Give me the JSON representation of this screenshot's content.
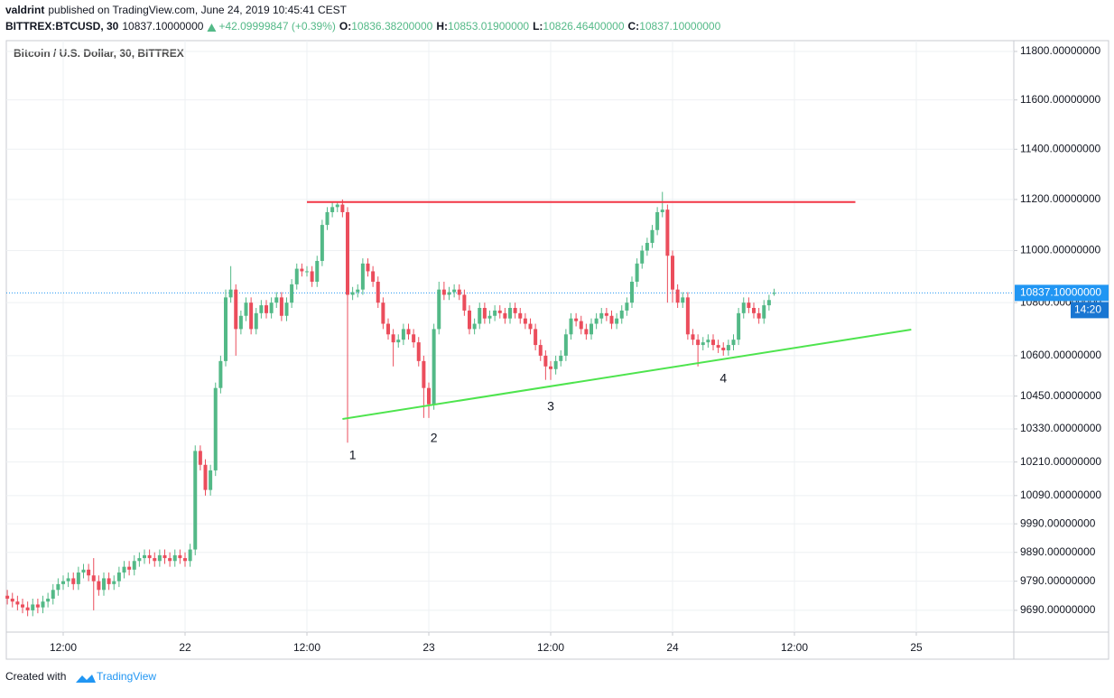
{
  "header": {
    "author": "valdrint",
    "published": "published on TradingView.com, June 24, 2019 10:45:41 CEST",
    "symbol": "BITTREX:BTCUSD, 30",
    "last": "10837.10000000",
    "change": "+42.09999847 (+0.39%)",
    "ohlc": [
      {
        "label": "O:",
        "value": "10836.38200000"
      },
      {
        "label": "H:",
        "value": "10853.01900000"
      },
      {
        "label": "L:",
        "value": "10826.46400000"
      },
      {
        "label": "C:",
        "value": "10837.10000000"
      }
    ]
  },
  "footer": {
    "created": "Created with",
    "brand": "TradingView"
  },
  "chart_data": {
    "type": "candlestick",
    "title": "Bitcoin / U.S. Dollar, 30, BITTREX",
    "up_color": "#53b987",
    "down_color": "#eb4d5c",
    "log": true,
    "grid": true,
    "xlim": [
      "2019-06-21 06:24",
      "2019-06-25 09:36"
    ],
    "xticks": [
      {
        "value": "2019-06-21 12:00",
        "label": "12:00"
      },
      {
        "value": "2019-06-22 00:00",
        "label": "22"
      },
      {
        "value": "2019-06-22 12:00",
        "label": "12:00"
      },
      {
        "value": "2019-06-23 00:00",
        "label": "23"
      },
      {
        "value": "2019-06-23 12:00",
        "label": "12:00"
      },
      {
        "value": "2019-06-24 00:00",
        "label": "24"
      },
      {
        "value": "2019-06-24 12:00",
        "label": "12:00"
      },
      {
        "value": "2019-06-25 00:00",
        "label": "25"
      }
    ],
    "ylim": [
      9616,
      11845
    ],
    "yticks": [
      {
        "value": 11800,
        "label": "11800.00000000"
      },
      {
        "value": 11600,
        "label": "11600.00000000"
      },
      {
        "value": 11400,
        "label": "11400.00000000"
      },
      {
        "value": 11200,
        "label": "11200.00000000"
      },
      {
        "value": 11000,
        "label": "11000.00000000"
      },
      {
        "value": 10800,
        "label": "10800.00000000"
      },
      {
        "value": 10600,
        "label": "10600.00000000"
      },
      {
        "value": 10450,
        "label": "10450.00000000"
      },
      {
        "value": 10330,
        "label": "10330.00000000"
      },
      {
        "value": 10210,
        "label": "10210.00000000"
      },
      {
        "value": 10090,
        "label": "10090.00000000"
      },
      {
        "value": 9990,
        "label": "9990.00000000"
      },
      {
        "value": 9890,
        "label": "9890.00000000"
      },
      {
        "value": 9790,
        "label": "9790.00000000"
      },
      {
        "value": 9690,
        "label": "9690.00000000"
      }
    ],
    "x": [
      "2019-06-21 06:30",
      "2019-06-21 07:00",
      "2019-06-21 07:30",
      "2019-06-21 08:00",
      "2019-06-21 08:30",
      "2019-06-21 09:00",
      "2019-06-21 09:30",
      "2019-06-21 10:00",
      "2019-06-21 10:30",
      "2019-06-21 11:00",
      "2019-06-21 11:30",
      "2019-06-21 12:00",
      "2019-06-21 12:30",
      "2019-06-21 13:00",
      "2019-06-21 13:30",
      "2019-06-21 14:00",
      "2019-06-21 14:30",
      "2019-06-21 15:00",
      "2019-06-21 15:30",
      "2019-06-21 16:00",
      "2019-06-21 16:30",
      "2019-06-21 17:00",
      "2019-06-21 17:30",
      "2019-06-21 18:00",
      "2019-06-21 18:30",
      "2019-06-21 19:00",
      "2019-06-21 19:30",
      "2019-06-21 20:00",
      "2019-06-21 20:30",
      "2019-06-21 21:00",
      "2019-06-21 21:30",
      "2019-06-21 22:00",
      "2019-06-21 22:30",
      "2019-06-21 23:00",
      "2019-06-21 23:30",
      "2019-06-22 00:00",
      "2019-06-22 00:30",
      "2019-06-22 01:00",
      "2019-06-22 01:30",
      "2019-06-22 02:00",
      "2019-06-22 02:30",
      "2019-06-22 03:00",
      "2019-06-22 03:30",
      "2019-06-22 04:00",
      "2019-06-22 04:30",
      "2019-06-22 05:00",
      "2019-06-22 05:30",
      "2019-06-22 06:00",
      "2019-06-22 06:30",
      "2019-06-22 07:00",
      "2019-06-22 07:30",
      "2019-06-22 08:00",
      "2019-06-22 08:30",
      "2019-06-22 09:00",
      "2019-06-22 09:30",
      "2019-06-22 10:00",
      "2019-06-22 10:30",
      "2019-06-22 11:00",
      "2019-06-22 11:30",
      "2019-06-22 12:00",
      "2019-06-22 12:30",
      "2019-06-22 13:00",
      "2019-06-22 13:30",
      "2019-06-22 14:00",
      "2019-06-22 14:30",
      "2019-06-22 15:00",
      "2019-06-22 15:30",
      "2019-06-22 16:00",
      "2019-06-22 16:30",
      "2019-06-22 17:00",
      "2019-06-22 17:30",
      "2019-06-22 18:00",
      "2019-06-22 18:30",
      "2019-06-22 19:00",
      "2019-06-22 19:30",
      "2019-06-22 20:00",
      "2019-06-22 20:30",
      "2019-06-22 21:00",
      "2019-06-22 21:30",
      "2019-06-22 22:00",
      "2019-06-22 22:30",
      "2019-06-22 23:00",
      "2019-06-22 23:30",
      "2019-06-23 00:00",
      "2019-06-23 00:30",
      "2019-06-23 01:00",
      "2019-06-23 01:30",
      "2019-06-23 02:00",
      "2019-06-23 02:30",
      "2019-06-23 03:00",
      "2019-06-23 03:30",
      "2019-06-23 04:00",
      "2019-06-23 04:30",
      "2019-06-23 05:00",
      "2019-06-23 05:30",
      "2019-06-23 06:00",
      "2019-06-23 06:30",
      "2019-06-23 07:00",
      "2019-06-23 07:30",
      "2019-06-23 08:00",
      "2019-06-23 08:30",
      "2019-06-23 09:00",
      "2019-06-23 09:30",
      "2019-06-23 10:00",
      "2019-06-23 10:30",
      "2019-06-23 11:00",
      "2019-06-23 11:30",
      "2019-06-23 12:00",
      "2019-06-23 12:30",
      "2019-06-23 13:00",
      "2019-06-23 13:30",
      "2019-06-23 14:00",
      "2019-06-23 14:30",
      "2019-06-23 15:00",
      "2019-06-23 15:30",
      "2019-06-23 16:00",
      "2019-06-23 16:30",
      "2019-06-23 17:00",
      "2019-06-23 17:30",
      "2019-06-23 18:00",
      "2019-06-23 18:30",
      "2019-06-23 19:00",
      "2019-06-23 19:30",
      "2019-06-23 20:00",
      "2019-06-23 20:30",
      "2019-06-23 21:00",
      "2019-06-23 21:30",
      "2019-06-23 22:00",
      "2019-06-23 22:30",
      "2019-06-23 23:00",
      "2019-06-23 23:30",
      "2019-06-24 00:00",
      "2019-06-24 00:30",
      "2019-06-24 01:00",
      "2019-06-24 01:30",
      "2019-06-24 02:00",
      "2019-06-24 02:30",
      "2019-06-24 03:00",
      "2019-06-24 03:30",
      "2019-06-24 04:00",
      "2019-06-24 04:30",
      "2019-06-24 05:00",
      "2019-06-24 05:30",
      "2019-06-24 06:00",
      "2019-06-24 06:30",
      "2019-06-24 07:00",
      "2019-06-24 07:30",
      "2019-06-24 08:00",
      "2019-06-24 08:30",
      "2019-06-24 09:00",
      "2019-06-24 09:30",
      "2019-06-24 10:00"
    ],
    "open": [
      9740,
      9730,
      9720,
      9710,
      9700,
      9690,
      9710,
      9700,
      9720,
      9730,
      9760,
      9780,
      9790,
      9800,
      9780,
      9820,
      9830,
      9810,
      9790,
      9760,
      9800,
      9780,
      9790,
      9820,
      9840,
      9830,
      9860,
      9870,
      9880,
      9870,
      9860,
      9880,
      9870,
      9860,
      9880,
      9870,
      9860,
      9900,
      10250,
      10200,
      10110,
      10180,
      10480,
      10580,
      10820,
      10850,
      10700,
      10750,
      10800,
      10700,
      10760,
      10790,
      10760,
      10800,
      10820,
      10750,
      10800,
      10870,
      10930,
      10920,
      10920,
      10880,
      10960,
      11100,
      11150,
      11170,
      11180,
      11150,
      10830,
      10840,
      10850,
      10950,
      10920,
      10880,
      10800,
      10720,
      10680,
      10650,
      10660,
      10700,
      10680,
      10650,
      10580,
      10480,
      10420,
      10700,
      10850,
      10830,
      10840,
      10850,
      10830,
      10770,
      10700,
      10720,
      10780,
      10740,
      10750,
      10770,
      10760,
      10740,
      10780,
      10760,
      10740,
      10720,
      10700,
      10640,
      10600,
      10560,
      10550,
      10580,
      10600,
      10680,
      10740,
      10730,
      10700,
      10680,
      10720,
      10740,
      10760,
      10750,
      10720,
      10740,
      10770,
      10800,
      10880,
      10950,
      11000,
      11030,
      11080,
      11150,
      11160,
      10980,
      10850,
      10800,
      10820,
      10680,
      10660,
      10640,
      10650,
      10660,
      10640,
      10630,
      10620,
      10640,
      10660,
      10760,
      10800,
      10780,
      10760,
      10740,
      10790,
      10836.382
    ],
    "high": [
      9760,
      9750,
      9740,
      9730,
      9720,
      9730,
      9730,
      9740,
      9750,
      9780,
      9800,
      9810,
      9820,
      9820,
      9840,
      9850,
      9850,
      9870,
      9810,
      9820,
      9820,
      9810,
      9840,
      9860,
      9860,
      9880,
      9890,
      9900,
      9900,
      9890,
      9900,
      9900,
      9890,
      9900,
      9900,
      9890,
      9920,
      10270,
      10270,
      10220,
      10200,
      10500,
      10600,
      10850,
      10940,
      10870,
      10770,
      10820,
      10820,
      10780,
      10810,
      10810,
      10820,
      10840,
      10840,
      10820,
      10890,
      10950,
      10950,
      10940,
      10940,
      10980,
      11120,
      11170,
      11190,
      11190,
      11200,
      11170,
      10860,
      10870,
      10970,
      10970,
      10940,
      10900,
      10820,
      10740,
      10700,
      10680,
      10720,
      10720,
      10700,
      10670,
      10600,
      10500,
      10720,
      10880,
      10880,
      10860,
      10870,
      10870,
      10850,
      10790,
      10740,
      10800,
      10800,
      10770,
      10790,
      10790,
      10780,
      10800,
      10800,
      10780,
      10760,
      10740,
      10720,
      10660,
      10620,
      10580,
      10600,
      10620,
      10700,
      10760,
      10760,
      10750,
      10720,
      10740,
      10760,
      10780,
      10780,
      10770,
      10760,
      10790,
      10820,
      10900,
      10970,
      11020,
      11050,
      11100,
      11170,
      11230,
      11180,
      11000,
      10870,
      10840,
      10840,
      10700,
      10680,
      10670,
      10680,
      10680,
      10660,
      10650,
      10660,
      10680,
      10780,
      10820,
      10820,
      10800,
      10780,
      10810,
      10830,
      10853.019
    ],
    "low": [
      9710,
      9700,
      9690,
      9680,
      9670,
      9670,
      9680,
      9680,
      9700,
      9710,
      9740,
      9760,
      9770,
      9760,
      9760,
      9800,
      9790,
      9690,
      9740,
      9740,
      9760,
      9760,
      9770,
      9800,
      9810,
      9810,
      9840,
      9850,
      9850,
      9840,
      9840,
      9850,
      9840,
      9840,
      9850,
      9840,
      9840,
      9880,
      10180,
      10090,
      10090,
      10160,
      10460,
      10560,
      10800,
      10600,
      10680,
      10730,
      10680,
      10680,
      10740,
      10740,
      10740,
      10780,
      10730,
      10730,
      10780,
      10850,
      10900,
      10900,
      10860,
      10860,
      10940,
      11080,
      11130,
      11150,
      11130,
      10280,
      10810,
      10820,
      10830,
      10900,
      10860,
      10780,
      10700,
      10660,
      10560,
      10630,
      10640,
      10660,
      10630,
      10560,
      10370,
      10370,
      10400,
      10680,
      10810,
      10810,
      10820,
      10810,
      10750,
      10680,
      10680,
      10700,
      10720,
      10720,
      10730,
      10740,
      10720,
      10720,
      10740,
      10720,
      10700,
      10680,
      10620,
      10580,
      10510,
      10510,
      10530,
      10560,
      10580,
      10660,
      10710,
      10680,
      10660,
      10660,
      10700,
      10720,
      10730,
      10700,
      10700,
      10720,
      10750,
      10780,
      10860,
      10930,
      10980,
      11010,
      11060,
      11130,
      10800,
      10800,
      10780,
      10780,
      10660,
      10640,
      10560,
      10620,
      10630,
      10620,
      10610,
      10600,
      10600,
      10620,
      10640,
      10740,
      10760,
      10740,
      10720,
      10720,
      10770,
      10826.464
    ],
    "close": [
      9730,
      9720,
      9710,
      9700,
      9690,
      9710,
      9700,
      9720,
      9730,
      9760,
      9780,
      9790,
      9800,
      9780,
      9820,
      9830,
      9810,
      9790,
      9760,
      9800,
      9780,
      9790,
      9820,
      9840,
      9830,
      9860,
      9870,
      9880,
      9870,
      9860,
      9880,
      9870,
      9860,
      9880,
      9870,
      9860,
      9900,
      10250,
      10200,
      10110,
      10180,
      10480,
      10580,
      10820,
      10850,
      10700,
      10750,
      10800,
      10700,
      10760,
      10790,
      10760,
      10800,
      10820,
      10750,
      10800,
      10870,
      10930,
      10920,
      10920,
      10880,
      10960,
      11100,
      11150,
      11170,
      11180,
      11150,
      10830,
      10840,
      10850,
      10950,
      10920,
      10880,
      10800,
      10720,
      10680,
      10650,
      10660,
      10700,
      10680,
      10650,
      10580,
      10480,
      10420,
      10700,
      10850,
      10830,
      10840,
      10850,
      10830,
      10770,
      10700,
      10720,
      10780,
      10740,
      10750,
      10770,
      10760,
      10740,
      10780,
      10760,
      10740,
      10720,
      10700,
      10640,
      10600,
      10560,
      10550,
      10580,
      10600,
      10680,
      10740,
      10730,
      10700,
      10680,
      10720,
      10740,
      10760,
      10750,
      10720,
      10740,
      10770,
      10800,
      10880,
      10950,
      11000,
      11030,
      11080,
      11150,
      11160,
      10980,
      10850,
      10800,
      10820,
      10680,
      10660,
      10640,
      10650,
      10660,
      10640,
      10630,
      10620,
      10640,
      10660,
      10760,
      10800,
      10780,
      10760,
      10740,
      10790,
      10810,
      10837.1
    ],
    "lines": [
      {
        "color": "#f23645",
        "x": [
          "2019-06-22 12:00",
          "2019-06-24 18:00"
        ],
        "y": [
          11190,
          11190
        ]
      },
      {
        "color": "#4ee44e",
        "x": [
          "2019-06-22 15:30",
          "2019-06-24 23:30"
        ],
        "y": [
          10366,
          10698
        ]
      }
    ],
    "annotations": [
      {
        "text": "1",
        "x": "2019-06-22 16:30",
        "y": 10232
      },
      {
        "text": "2",
        "x": "2019-06-23 00:30",
        "y": 10294
      },
      {
        "text": "3",
        "x": "2019-06-23 12:00",
        "y": 10409
      },
      {
        "text": "4",
        "x": "2019-06-24 05:00",
        "y": 10513
      }
    ],
    "last_price": {
      "value": 10837.1,
      "label": "10837.10000000",
      "color": "#2196f3"
    },
    "countdown": "14:20"
  }
}
